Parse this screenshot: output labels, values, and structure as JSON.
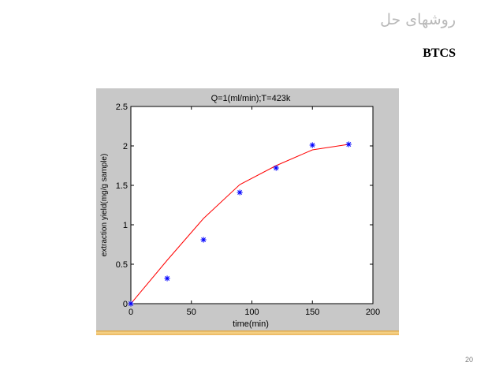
{
  "slide": {
    "title": "روشهای حل",
    "subtitle": "BTCS",
    "page_number": "20"
  },
  "chart_data": {
    "type": "line",
    "title": "Q=1(ml/min);T=423k",
    "xlabel": "time(min)",
    "ylabel": "extraction yield(mg/g sample)",
    "xlim": [
      0,
      200
    ],
    "ylim": [
      0,
      2.5
    ],
    "xticks": [
      0,
      50,
      100,
      150,
      200
    ],
    "yticks": [
      0,
      0.5,
      1,
      1.5,
      2,
      2.5
    ],
    "grid": false,
    "legend": "none",
    "series": [
      {
        "kind": "line",
        "color": "#ff0000",
        "x": [
          0,
          30,
          60,
          90,
          120,
          150,
          180
        ],
        "y": [
          0,
          0.55,
          1.08,
          1.51,
          1.75,
          1.95,
          2.02
        ]
      },
      {
        "kind": "scatter",
        "marker": "asterisk",
        "color": "#0000ff",
        "x": [
          0,
          30,
          60,
          90,
          120,
          150,
          180
        ],
        "y": [
          0,
          0.32,
          0.81,
          1.41,
          1.72,
          2.01,
          2.02
        ]
      }
    ]
  }
}
